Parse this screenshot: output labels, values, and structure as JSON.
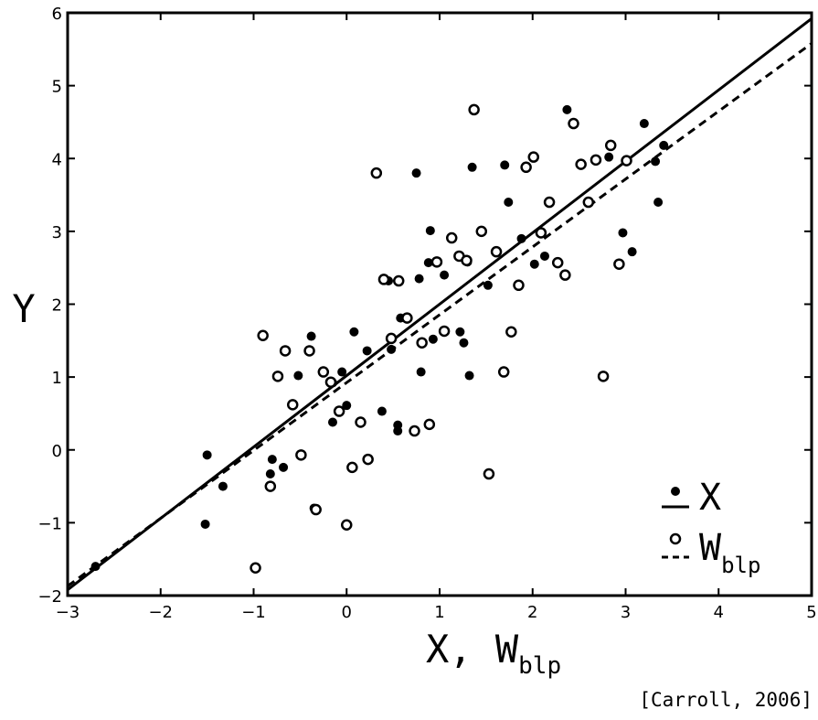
{
  "chart_data": {
    "type": "scatter",
    "xlabel": "X, W",
    "xlabel_subscript": "blp",
    "ylabel": "Y",
    "xlim": [
      -3,
      5
    ],
    "ylim": [
      -2,
      6
    ],
    "xticks": [
      -3,
      -2,
      -1,
      0,
      1,
      2,
      3,
      4,
      5
    ],
    "xtick_labels": [
      "−3",
      "−2",
      "−1",
      "0",
      "1",
      "2",
      "3",
      "4",
      "5"
    ],
    "yticks": [
      -2,
      -1,
      0,
      1,
      2,
      3,
      4,
      5,
      6
    ],
    "ytick_labels": [
      "−2",
      "−1",
      "0",
      "1",
      "2",
      "3",
      "4",
      "5",
      "6"
    ],
    "grid": false,
    "legend_position": "bottom-right",
    "series": [
      {
        "name": "X",
        "marker": "filled-circle",
        "points": [
          [
            -2.7,
            -1.6
          ],
          [
            -1.5,
            -0.07
          ],
          [
            -1.52,
            -1.02
          ],
          [
            -1.33,
            -0.5
          ],
          [
            -0.8,
            -0.13
          ],
          [
            -0.82,
            -0.33
          ],
          [
            -0.68,
            -0.24
          ],
          [
            -0.52,
            1.02
          ],
          [
            -0.38,
            1.56
          ],
          [
            -0.35,
            -0.8
          ],
          [
            -0.15,
            0.92
          ],
          [
            -0.05,
            1.07
          ],
          [
            0.0,
            0.61
          ],
          [
            0.08,
            1.62
          ],
          [
            -0.15,
            0.38
          ],
          [
            0.22,
            1.36
          ],
          [
            0.38,
            0.53
          ],
          [
            0.45,
            2.32
          ],
          [
            0.48,
            1.38
          ],
          [
            0.55,
            0.34
          ],
          [
            0.55,
            0.26
          ],
          [
            0.58,
            1.81
          ],
          [
            0.75,
            3.8
          ],
          [
            0.78,
            2.35
          ],
          [
            0.8,
            1.07
          ],
          [
            0.88,
            2.57
          ],
          [
            0.9,
            3.01
          ],
          [
            0.93,
            1.52
          ],
          [
            1.05,
            2.4
          ],
          [
            1.22,
            1.62
          ],
          [
            1.26,
            1.47
          ],
          [
            1.3,
            2.58
          ],
          [
            1.32,
            1.02
          ],
          [
            1.35,
            3.88
          ],
          [
            1.52,
            2.26
          ],
          [
            1.7,
            3.91
          ],
          [
            1.74,
            3.4
          ],
          [
            1.88,
            2.9
          ],
          [
            2.02,
            2.55
          ],
          [
            2.13,
            2.66
          ],
          [
            2.37,
            4.67
          ],
          [
            2.82,
            4.02
          ],
          [
            2.97,
            2.98
          ],
          [
            3.07,
            2.72
          ],
          [
            3.2,
            4.48
          ],
          [
            3.32,
            3.96
          ],
          [
            3.35,
            3.4
          ],
          [
            3.41,
            4.18
          ]
        ]
      },
      {
        "name": "W",
        "name_subscript": "blp",
        "marker": "open-circle",
        "points": [
          [
            -0.98,
            -1.62
          ],
          [
            -0.9,
            1.57
          ],
          [
            -0.82,
            -0.5
          ],
          [
            -0.74,
            1.01
          ],
          [
            -0.66,
            1.36
          ],
          [
            -0.58,
            0.62
          ],
          [
            -0.49,
            -0.07
          ],
          [
            -0.4,
            1.36
          ],
          [
            -0.33,
            -0.82
          ],
          [
            -0.25,
            1.07
          ],
          [
            -0.17,
            0.93
          ],
          [
            -0.08,
            0.53
          ],
          [
            0.0,
            -1.03
          ],
          [
            0.06,
            -0.24
          ],
          [
            0.15,
            0.38
          ],
          [
            0.23,
            -0.13
          ],
          [
            0.32,
            3.8
          ],
          [
            0.4,
            2.34
          ],
          [
            0.48,
            1.53
          ],
          [
            0.56,
            2.32
          ],
          [
            0.65,
            1.81
          ],
          [
            0.73,
            0.26
          ],
          [
            0.81,
            1.47
          ],
          [
            0.89,
            0.35
          ],
          [
            0.97,
            2.58
          ],
          [
            1.05,
            1.63
          ],
          [
            1.13,
            2.91
          ],
          [
            1.21,
            2.66
          ],
          [
            1.29,
            2.6
          ],
          [
            1.37,
            4.67
          ],
          [
            1.45,
            3.0
          ],
          [
            1.53,
            -0.33
          ],
          [
            1.61,
            2.72
          ],
          [
            1.69,
            1.07
          ],
          [
            1.77,
            1.62
          ],
          [
            1.85,
            2.26
          ],
          [
            1.93,
            3.88
          ],
          [
            2.01,
            4.02
          ],
          [
            2.09,
            2.98
          ],
          [
            2.18,
            3.4
          ],
          [
            2.27,
            2.57
          ],
          [
            2.35,
            2.4
          ],
          [
            2.44,
            4.48
          ],
          [
            2.52,
            3.92
          ],
          [
            2.6,
            3.4
          ],
          [
            2.68,
            3.98
          ],
          [
            2.76,
            1.01
          ],
          [
            2.84,
            4.18
          ],
          [
            2.93,
            2.55
          ],
          [
            3.01,
            3.97
          ]
        ]
      }
    ],
    "lines": [
      {
        "name": "X fit",
        "style": "solid",
        "x": [
          -3,
          5
        ],
        "y": [
          -1.92,
          5.92
        ]
      },
      {
        "name": "W fit",
        "style": "dashed",
        "x": [
          -3,
          5
        ],
        "y": [
          -1.87,
          5.58
        ]
      }
    ],
    "legend": [
      {
        "label": "X",
        "marker": "filled-circle",
        "line": "solid"
      },
      {
        "label": "W",
        "subscript": "blp",
        "marker": "open-circle",
        "line": "dashed"
      }
    ]
  },
  "citation": "[Carroll, 2006]"
}
